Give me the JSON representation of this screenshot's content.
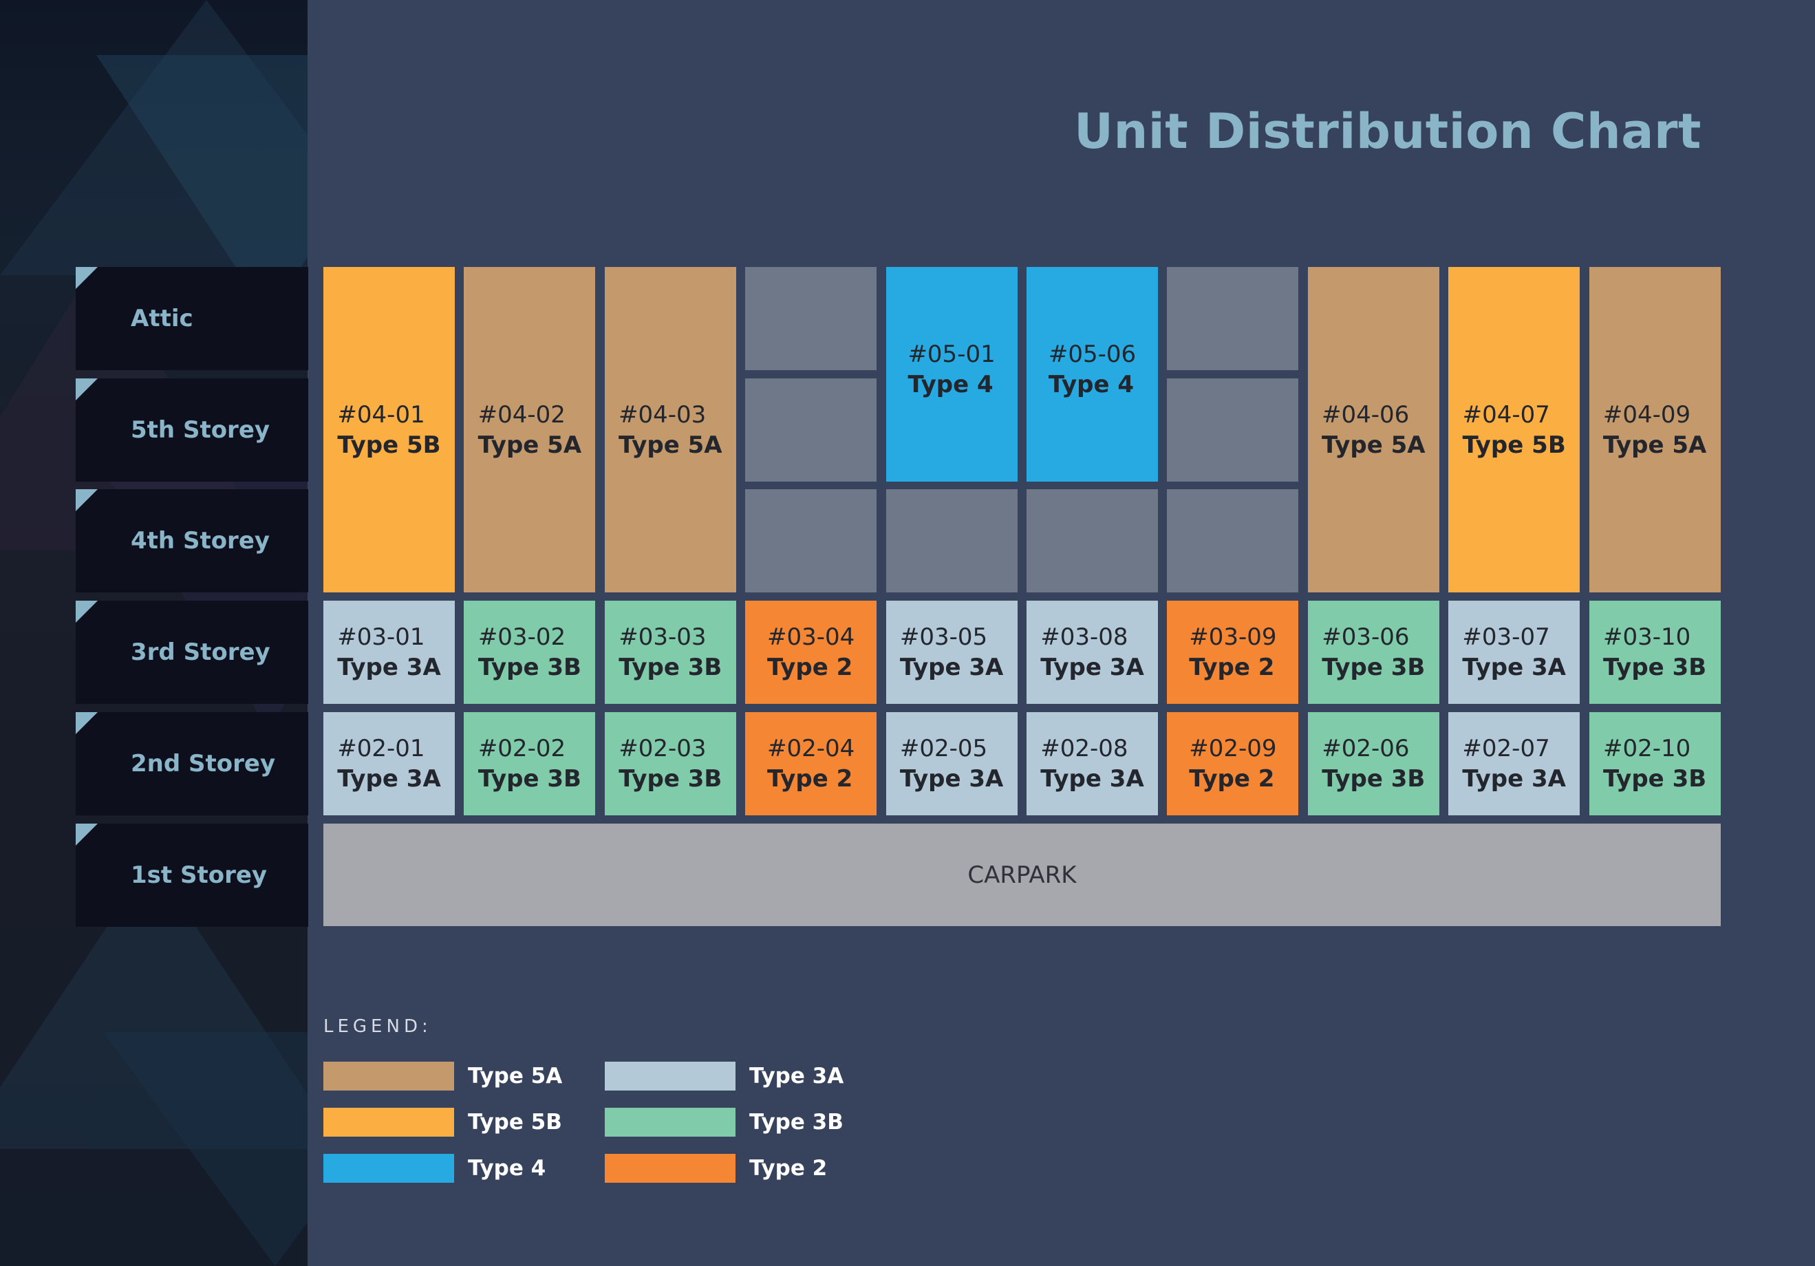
{
  "title": "Unit Distribution Chart",
  "colors": {
    "type5A": "#c49a6c",
    "type5B": "#fbae42",
    "type4": "#27aae1",
    "type3A": "#b3c9d8",
    "type3B": "#80cbaa",
    "type2": "#f58634",
    "empty": "#6f7889",
    "carpark": "#a6a8ae"
  },
  "floors": [
    "Attic",
    "5th Storey",
    "4th Storey",
    "3rd Storey",
    "2nd Storey",
    "1st Storey"
  ],
  "upper_units": [
    {
      "num": "#04-01",
      "type": "Type 5B",
      "col": 0
    },
    {
      "num": "#04-02",
      "type": "Type 5A",
      "col": 1
    },
    {
      "num": "#04-03",
      "type": "Type 5A",
      "col": 2
    },
    {
      "num": "#05-01",
      "type": "Type 4",
      "col": 4
    },
    {
      "num": "#05-06",
      "type": "Type 4",
      "col": 5
    },
    {
      "num": "#04-06",
      "type": "Type 5A",
      "col": 7
    },
    {
      "num": "#04-07",
      "type": "Type 5B",
      "col": 8
    },
    {
      "num": "#04-09",
      "type": "Type 5A",
      "col": 9
    }
  ],
  "third_storey": [
    {
      "num": "#03-01",
      "type": "Type 3A"
    },
    {
      "num": "#03-02",
      "type": "Type 3B"
    },
    {
      "num": "#03-03",
      "type": "Type 3B"
    },
    {
      "num": "#03-04",
      "type": "Type 2"
    },
    {
      "num": "#03-05",
      "type": "Type 3A"
    },
    {
      "num": "#03-08",
      "type": "Type 3A"
    },
    {
      "num": "#03-09",
      "type": "Type 2"
    },
    {
      "num": "#03-06",
      "type": "Type 3B"
    },
    {
      "num": "#03-07",
      "type": "Type 3A"
    },
    {
      "num": "#03-10",
      "type": "Type 3B"
    }
  ],
  "second_storey": [
    {
      "num": "#02-01",
      "type": "Type 3A"
    },
    {
      "num": "#02-02",
      "type": "Type 3B"
    },
    {
      "num": "#02-03",
      "type": "Type 3B"
    },
    {
      "num": "#02-04",
      "type": "Type 2"
    },
    {
      "num": "#02-05",
      "type": "Type 3A"
    },
    {
      "num": "#02-08",
      "type": "Type 3A"
    },
    {
      "num": "#02-09",
      "type": "Type 2"
    },
    {
      "num": "#02-06",
      "type": "Type 3B"
    },
    {
      "num": "#02-07",
      "type": "Type 3A"
    },
    {
      "num": "#02-10",
      "type": "Type 3B"
    }
  ],
  "carpark_label": "CARPARK",
  "legend": {
    "title": "LEGEND:",
    "items": [
      {
        "label": "Type 5A",
        "color": "#c49a6c"
      },
      {
        "label": "Type 5B",
        "color": "#fbae42"
      },
      {
        "label": "Type 4",
        "color": "#27aae1"
      },
      {
        "label": "Type 3A",
        "color": "#b3c9d8"
      },
      {
        "label": "Type 3B",
        "color": "#80cbaa"
      },
      {
        "label": "Type 2",
        "color": "#f58634"
      }
    ]
  }
}
